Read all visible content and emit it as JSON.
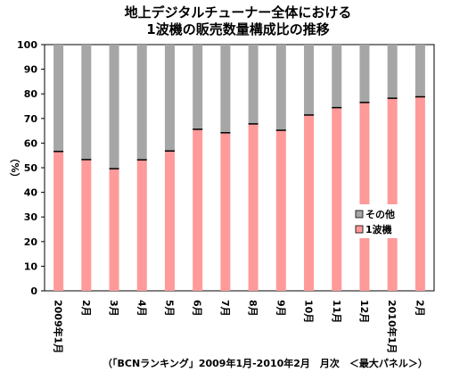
{
  "chart_data": {
    "type": "bar",
    "stacked": true,
    "title_lines": [
      "地上デジタルチューナー全体における",
      "1波機の販売数量構成比の推移"
    ],
    "ylabel": "（%）",
    "xlabel": "",
    "ylim": [
      0,
      100
    ],
    "yticks": [
      "0",
      "10",
      "20",
      "30",
      "40",
      "50",
      "60",
      "70",
      "80",
      "90",
      "100"
    ],
    "grid": false,
    "legend_position": "right",
    "categories": [
      "2009年1月",
      "2月",
      "3月",
      "4月",
      "5月",
      "6月",
      "7月",
      "8月",
      "9月",
      "10月",
      "11月",
      "12月",
      "2010年1月",
      "2月"
    ],
    "series": [
      {
        "name": "1波機",
        "color": "#ff9a9a",
        "values": [
          56.6,
          53.3,
          49.6,
          53.2,
          56.8,
          65.6,
          64.2,
          67.8,
          65.2,
          71.4,
          74.4,
          76.5,
          78.2,
          78.8
        ]
      },
      {
        "name": "その他",
        "color": "#a6a6a6",
        "values": [
          43.4,
          46.7,
          50.4,
          46.8,
          43.2,
          34.4,
          35.8,
          32.2,
          34.8,
          28.6,
          25.6,
          23.5,
          21.8,
          21.2
        ]
      }
    ],
    "legend_order": [
      "その他",
      "1波機"
    ]
  },
  "source": "（「BCNランキング」2009年1月-2010年2月　月次　＜最大パネル＞）"
}
